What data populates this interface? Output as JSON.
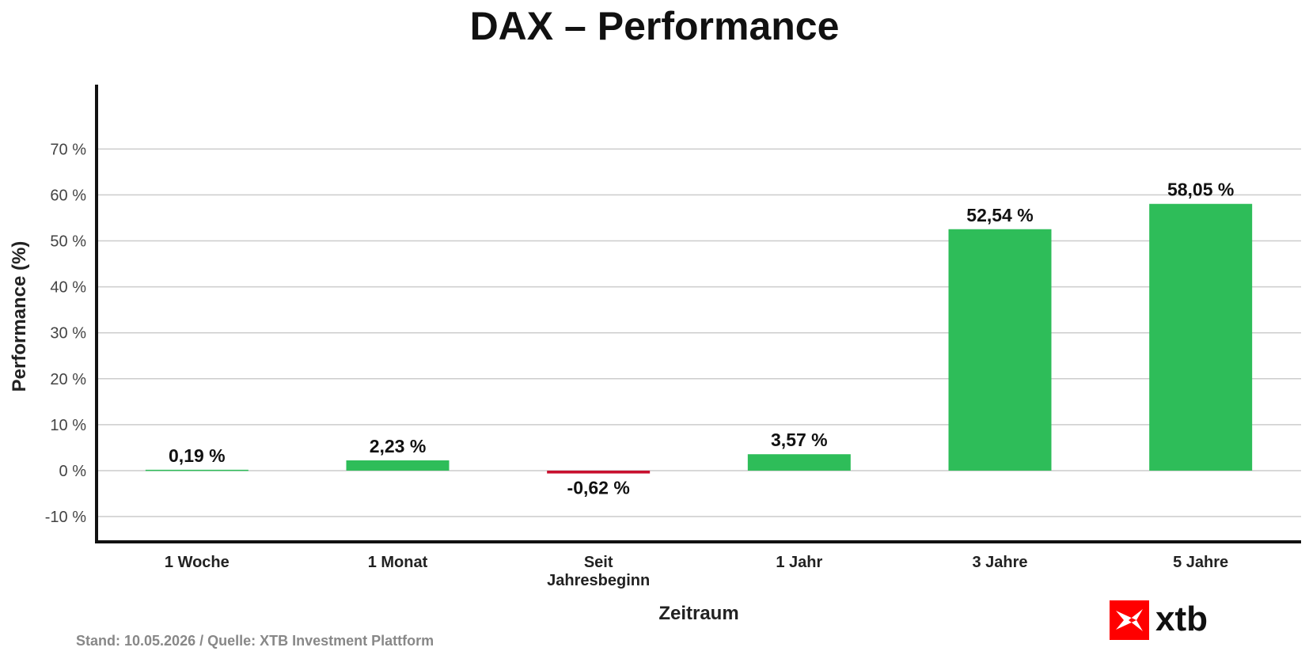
{
  "chart_data": {
    "type": "bar",
    "title": "DAX – Performance",
    "xlabel": "Zeitraum",
    "ylabel": "Performance (%)",
    "categories": [
      "1 Woche",
      "1 Monat",
      "Seit Jahresbeginn",
      "1 Jahr",
      "3 Jahre",
      "5 Jahre"
    ],
    "category_lines": [
      [
        "1 Woche"
      ],
      [
        "1 Monat"
      ],
      [
        "Seit",
        "Jahresbeginn"
      ],
      [
        "1 Jahr"
      ],
      [
        "3 Jahre"
      ],
      [
        "5 Jahre"
      ]
    ],
    "values": [
      0.19,
      2.23,
      -0.62,
      3.57,
      52.54,
      58.05
    ],
    "value_labels": [
      "0,19 %",
      "2,23 %",
      "-0,62 %",
      "3,57 %",
      "52,54 %",
      "58,05 %"
    ],
    "yticks": [
      -10,
      0,
      10,
      20,
      30,
      40,
      50,
      60,
      70
    ],
    "ytick_labels": [
      "-10 %",
      "0 %",
      "10 %",
      "20 %",
      "30 %",
      "40 %",
      "50 %",
      "60 %",
      "70 %"
    ],
    "ylim": [
      -15.5,
      84
    ],
    "grid": true,
    "colors": {
      "positive": "#2EBD59",
      "negative": "#C8102E"
    }
  },
  "footer": {
    "source": "Stand: 10.05.2026 / Quelle: XTB Investment Plattform"
  },
  "logo": {
    "text": "xtb",
    "color": "#FF0000"
  }
}
